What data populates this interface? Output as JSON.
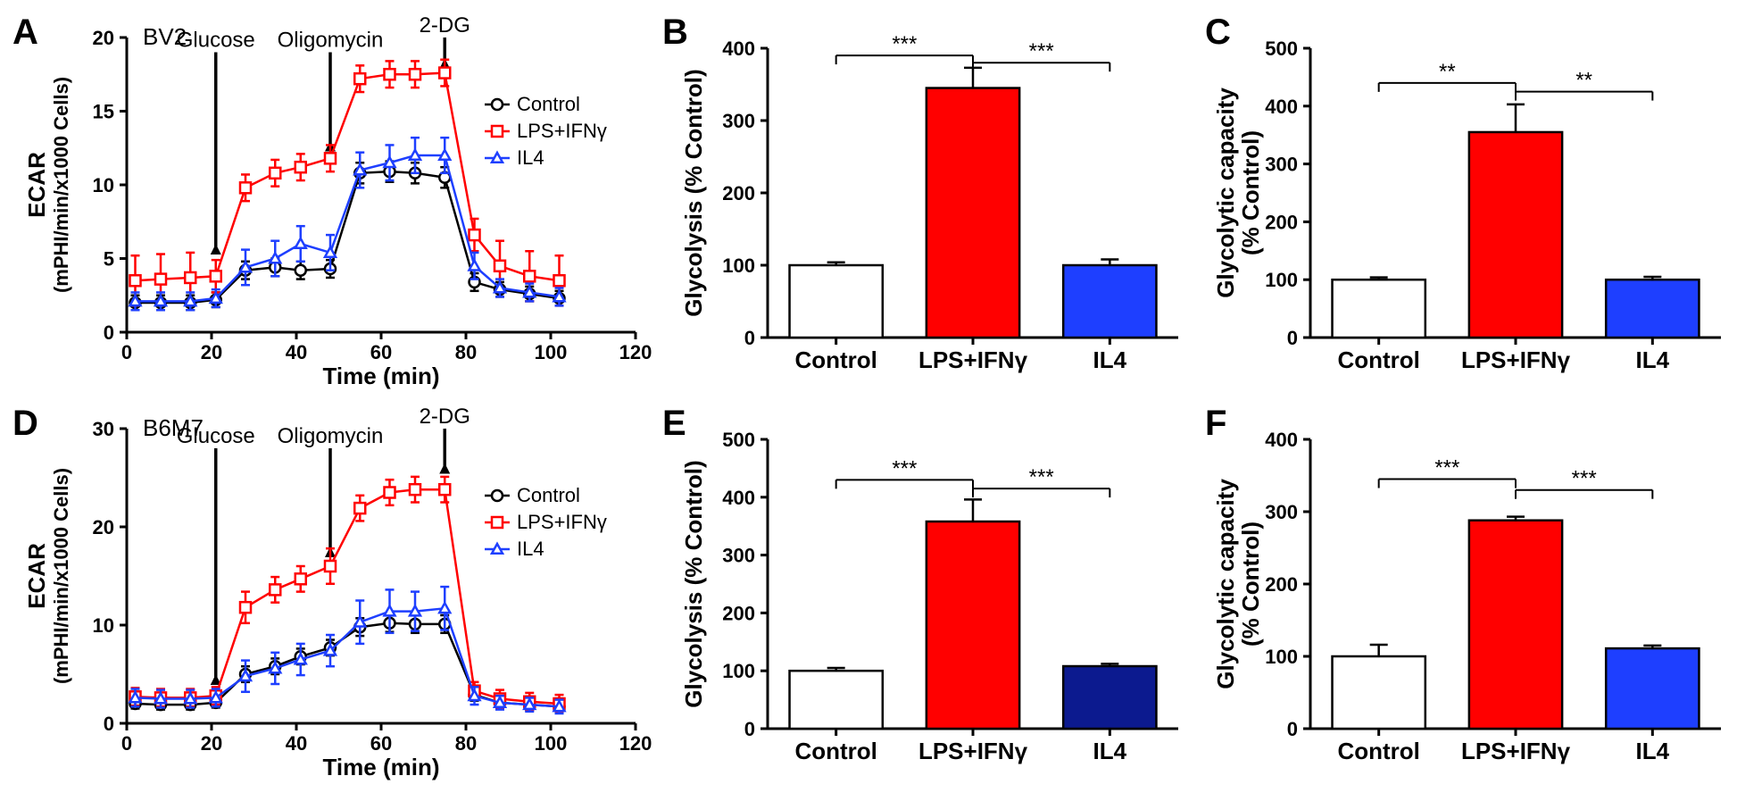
{
  "colors": {
    "control": "#ffffff",
    "control_stroke": "#000000",
    "lps": "#ff0000",
    "lps_fill": "#ff0000",
    "il4": "#1e3fff",
    "il4_fill": "#1e3fff",
    "il4_bar_B": "#1e3fff",
    "il4_bar_E": "#0c1a8f",
    "axis": "#000000"
  },
  "panelA": {
    "letter": "A",
    "title": "BV2",
    "xlabel": "Time (min)",
    "ylabel": "ECAR",
    "ylabel2": "(mPHI/min/x1000 Cells)",
    "xlim": [
      0,
      120
    ],
    "xtick_step": 20,
    "ylim": [
      0,
      20
    ],
    "ytick_step": 5,
    "x": [
      2,
      8,
      15,
      21,
      28,
      35,
      41,
      48,
      55,
      62,
      68,
      75,
      82,
      88,
      95,
      102
    ],
    "control": {
      "y": [
        2.0,
        2.0,
        2.0,
        2.2,
        4.2,
        4.4,
        4.2,
        4.3,
        10.8,
        10.9,
        10.8,
        10.5,
        3.4,
        2.9,
        2.6,
        2.3
      ],
      "e": [
        0.5,
        0.5,
        0.5,
        0.5,
        0.6,
        0.6,
        0.6,
        0.6,
        0.7,
        0.7,
        0.7,
        0.7,
        0.6,
        0.5,
        0.5,
        0.5
      ],
      "color": "#000000",
      "fill": "#ffffff",
      "marker": "circle"
    },
    "lps": {
      "y": [
        3.5,
        3.6,
        3.7,
        3.8,
        9.8,
        10.8,
        11.2,
        11.8,
        17.2,
        17.5,
        17.5,
        17.6,
        6.6,
        4.5,
        3.8,
        3.5
      ],
      "e": [
        1.7,
        1.7,
        1.7,
        1.1,
        0.9,
        0.9,
        0.9,
        0.9,
        0.9,
        0.9,
        0.9,
        0.9,
        1.1,
        1.7,
        1.7,
        1.7
      ],
      "color": "#ff0000",
      "fill": "#ffffff",
      "marker": "square"
    },
    "il4": {
      "y": [
        2.1,
        2.1,
        2.1,
        2.3,
        4.4,
        5.0,
        6.0,
        5.4,
        11.0,
        11.5,
        12.0,
        12.0,
        4.5,
        3.0,
        2.7,
        2.4
      ],
      "e": [
        0.6,
        0.6,
        0.6,
        0.6,
        1.2,
        1.2,
        1.2,
        1.2,
        1.2,
        1.2,
        1.2,
        1.2,
        0.9,
        0.6,
        0.6,
        0.6
      ],
      "color": "#1e3fff",
      "fill": "#ffffff",
      "marker": "triangle"
    },
    "annotations": [
      {
        "label": "Glucose",
        "x": 21,
        "y_top": 19,
        "y_head": 6
      },
      {
        "label": "Oligomycin",
        "x": 48,
        "y_top": 19,
        "y_head": 13
      },
      {
        "label": "2-DG",
        "x": 75,
        "y_top": 22.5,
        "y_head": 18.6
      }
    ],
    "legend": [
      {
        "label": "Control",
        "marker": "circle",
        "color": "#000000"
      },
      {
        "label": "LPS+IFNγ",
        "marker": "square",
        "color": "#ff0000"
      },
      {
        "label": "IL4",
        "marker": "triangle",
        "color": "#1e3fff"
      }
    ]
  },
  "panelD": {
    "letter": "D",
    "title": "B6M7",
    "xlabel": "Time (min)",
    "ylabel": "ECAR",
    "ylabel2": "(mPHI/min/x1000 Cells)",
    "xlim": [
      0,
      120
    ],
    "xtick_step": 20,
    "ylim": [
      0,
      30
    ],
    "ytick_step": 10,
    "x": [
      2,
      8,
      15,
      21,
      28,
      35,
      41,
      48,
      55,
      62,
      68,
      75,
      82,
      88,
      95,
      102
    ],
    "control": {
      "y": [
        2.0,
        1.9,
        1.9,
        2.1,
        5.0,
        5.8,
        6.8,
        7.7,
        9.8,
        10.2,
        10.1,
        10.1,
        2.9,
        2.1,
        1.9,
        1.7
      ],
      "e": [
        0.5,
        0.5,
        0.5,
        0.5,
        0.8,
        0.8,
        0.8,
        0.8,
        0.9,
        0.9,
        0.9,
        0.9,
        0.6,
        0.5,
        0.5,
        0.5
      ],
      "color": "#000000",
      "fill": "#ffffff",
      "marker": "circle"
    },
    "lps": {
      "y": [
        2.7,
        2.6,
        2.6,
        2.8,
        11.8,
        13.6,
        14.7,
        16.0,
        21.9,
        23.5,
        23.8,
        23.8,
        3.3,
        2.5,
        2.2,
        2.0
      ],
      "e": [
        0.9,
        0.9,
        0.9,
        0.9,
        1.6,
        1.3,
        1.3,
        1.8,
        1.3,
        1.3,
        1.3,
        1.3,
        0.9,
        0.9,
        0.9,
        0.9
      ],
      "color": "#ff0000",
      "fill": "#ffffff",
      "marker": "square"
    },
    "il4": {
      "y": [
        2.6,
        2.5,
        2.5,
        2.6,
        4.8,
        5.6,
        6.5,
        7.4,
        10.3,
        11.4,
        11.4,
        11.7,
        2.8,
        2.1,
        1.9,
        1.7
      ],
      "e": [
        0.9,
        0.9,
        0.9,
        0.9,
        1.6,
        1.6,
        1.6,
        1.6,
        2.2,
        2.2,
        2.0,
        2.2,
        0.9,
        0.7,
        0.7,
        0.7
      ],
      "color": "#1e3fff",
      "fill": "#ffffff",
      "marker": "triangle"
    },
    "annotations": [
      {
        "label": "Glucose",
        "x": 21,
        "y_top": 28,
        "y_head": 5
      },
      {
        "label": "Oligomycin",
        "x": 48,
        "y_top": 28,
        "y_head": 18
      },
      {
        "label": "2-DG",
        "x": 75,
        "y_top": 33,
        "y_head": 26.5
      }
    ],
    "legend": [
      {
        "label": "Control",
        "marker": "circle",
        "color": "#000000"
      },
      {
        "label": "LPS+IFNγ",
        "marker": "square",
        "color": "#ff0000"
      },
      {
        "label": "IL4",
        "marker": "triangle",
        "color": "#1e3fff"
      }
    ]
  },
  "panelB": {
    "letter": "B",
    "ylabel": "Glycolysis (% Control)",
    "ylim": [
      0,
      400
    ],
    "ytick_step": 100,
    "categories": [
      "Control",
      "LPS+IFNγ",
      "IL4"
    ],
    "values": [
      100,
      345,
      100
    ],
    "errors": [
      4,
      28,
      8
    ],
    "colors": [
      "#ffffff",
      "#ff0000",
      "#1e3fff"
    ],
    "sig": [
      {
        "from": 0,
        "to": 1,
        "label": "***",
        "y": 390
      },
      {
        "from": 1,
        "to": 2,
        "label": "***",
        "y": 380
      }
    ]
  },
  "panelC": {
    "letter": "C",
    "ylabel": "Glycolytic capacity",
    "ylabel2": "(% Control)",
    "ylim": [
      0,
      500
    ],
    "ytick_step": 100,
    "categories": [
      "Control",
      "LPS+IFNγ",
      "IL4"
    ],
    "values": [
      100,
      355,
      100
    ],
    "errors": [
      4,
      48,
      5
    ],
    "colors": [
      "#ffffff",
      "#ff0000",
      "#1e3fff"
    ],
    "sig": [
      {
        "from": 0,
        "to": 1,
        "label": "**",
        "y": 440
      },
      {
        "from": 1,
        "to": 2,
        "label": "**",
        "y": 425
      }
    ]
  },
  "panelE": {
    "letter": "E",
    "ylabel": "Glycolysis (% Control)",
    "ylim": [
      0,
      500
    ],
    "ytick_step": 100,
    "categories": [
      "Control",
      "LPS+IFNγ",
      "IL4"
    ],
    "values": [
      100,
      358,
      108
    ],
    "errors": [
      5,
      38,
      4
    ],
    "colors": [
      "#ffffff",
      "#ff0000",
      "#0c1a8f"
    ],
    "sig": [
      {
        "from": 0,
        "to": 1,
        "label": "***",
        "y": 430
      },
      {
        "from": 1,
        "to": 2,
        "label": "***",
        "y": 415
      }
    ]
  },
  "panelF": {
    "letter": "F",
    "ylabel": "Glycolytic capacity",
    "ylabel2": "(% Control)",
    "ylim": [
      0,
      400
    ],
    "ytick_step": 100,
    "categories": [
      "Control",
      "LPS+IFNγ",
      "IL4"
    ],
    "values": [
      100,
      288,
      111
    ],
    "errors": [
      16,
      5,
      4
    ],
    "colors": [
      "#ffffff",
      "#ff0000",
      "#1e3fff"
    ],
    "sig": [
      {
        "from": 0,
        "to": 1,
        "label": "***",
        "y": 345
      },
      {
        "from": 1,
        "to": 2,
        "label": "***",
        "y": 330
      }
    ]
  }
}
